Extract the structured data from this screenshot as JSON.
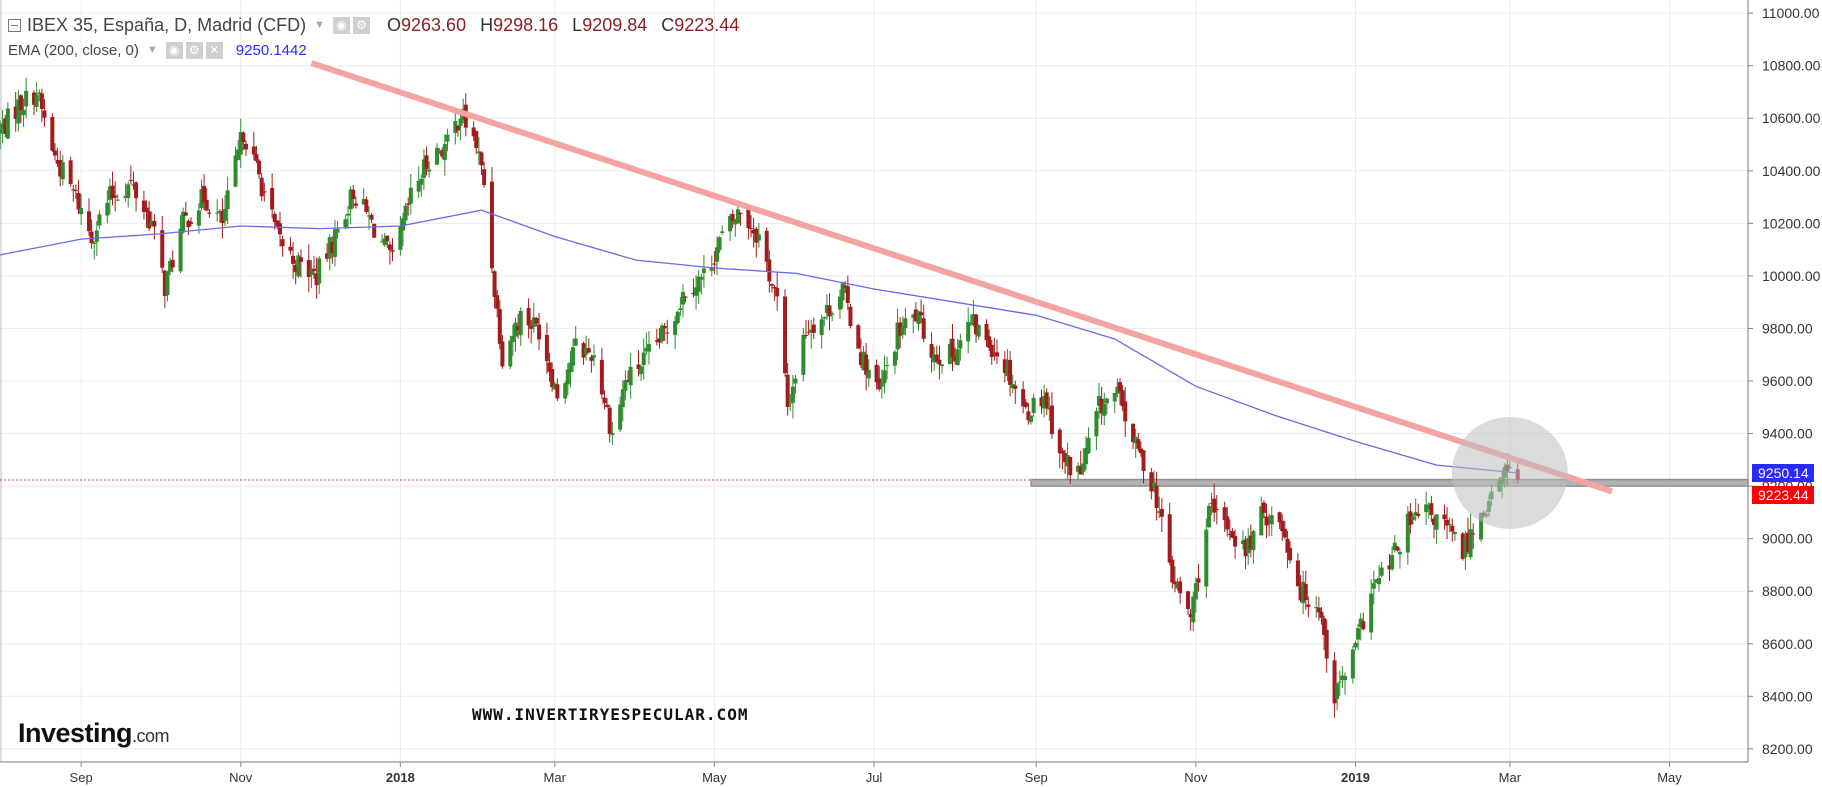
{
  "legend": {
    "title": "IBEX 35, España, D, Madrid (CFD)",
    "ohlc": [
      {
        "label": "O",
        "value": "9263.60"
      },
      {
        "label": "H",
        "value": "9298.16"
      },
      {
        "label": "L",
        "value": "9209.84"
      },
      {
        "label": "C",
        "value": "9223.44"
      }
    ],
    "ema_label": "EMA (200, close, 0)",
    "ema_value": "9250.1442"
  },
  "price_tags": {
    "ema": "9250.14",
    "close": "9223.44"
  },
  "watermark": "WWW.INVERTIRYESPECULAR.COM",
  "logo": {
    "main": "Investing",
    "suffix": ".com"
  },
  "colors": {
    "up": "#2e8b2e",
    "down": "#a11d1d",
    "ema": "#6a6ae8",
    "trendline": "#f4a3a3",
    "support": "#888888",
    "close_line": "#e23b3b",
    "ema_tag": "#2a2aff",
    "close_tag": "#ff0000",
    "axis_text": "#333333"
  },
  "chart_data": {
    "type": "candlestick",
    "title": "IBEX 35, España, D, Madrid (CFD)",
    "y_range": [
      8150,
      11050
    ],
    "y_ticks": [
      "11000.00",
      "10800.00",
      "10600.00",
      "10400.00",
      "10200.00",
      "10000.00",
      "9800.00",
      "9600.00",
      "9400.00",
      "9200.00",
      "9000.00",
      "8800.00",
      "8600.00",
      "8400.00",
      "8200.00"
    ],
    "x_range": [
      "2017-08-01",
      "2019-05-31"
    ],
    "x_ticks": [
      {
        "label": "Sep",
        "date": "2017-09-01",
        "bold": false
      },
      {
        "label": "Nov",
        "date": "2017-11-01",
        "bold": false
      },
      {
        "label": "2018",
        "date": "2018-01-01",
        "bold": true
      },
      {
        "label": "Mar",
        "date": "2018-03-01",
        "bold": false
      },
      {
        "label": "May",
        "date": "2018-05-01",
        "bold": false
      },
      {
        "label": "Jul",
        "date": "2018-07-01",
        "bold": false
      },
      {
        "label": "Sep",
        "date": "2018-09-01",
        "bold": false
      },
      {
        "label": "Nov",
        "date": "2018-11-01",
        "bold": false
      },
      {
        "label": "2019",
        "date": "2019-01-01",
        "bold": true
      },
      {
        "label": "Mar",
        "date": "2019-03-01",
        "bold": false
      },
      {
        "label": "May",
        "date": "2019-05-01",
        "bold": false
      }
    ],
    "last_ohlc": {
      "open": 9263.6,
      "high": 9298.16,
      "low": 9209.84,
      "close": 9223.44
    },
    "close_anchors": [
      {
        "date": "2017-08-01",
        "close": 10550
      },
      {
        "date": "2017-08-08",
        "close": 10650
      },
      {
        "date": "2017-08-15",
        "close": 10700
      },
      {
        "date": "2017-08-22",
        "close": 10450
      },
      {
        "date": "2017-08-30",
        "close": 10300
      },
      {
        "date": "2017-09-05",
        "close": 10150
      },
      {
        "date": "2017-09-12",
        "close": 10300
      },
      {
        "date": "2017-09-20",
        "close": 10350
      },
      {
        "date": "2017-09-28",
        "close": 10200
      },
      {
        "date": "2017-10-03",
        "close": 9960
      },
      {
        "date": "2017-10-10",
        "close": 10200
      },
      {
        "date": "2017-10-18",
        "close": 10300
      },
      {
        "date": "2017-10-25",
        "close": 10200
      },
      {
        "date": "2017-11-02",
        "close": 10550
      },
      {
        "date": "2017-11-08",
        "close": 10380
      },
      {
        "date": "2017-11-15",
        "close": 10150
      },
      {
        "date": "2017-11-22",
        "close": 10050
      },
      {
        "date": "2017-11-30",
        "close": 10000
      },
      {
        "date": "2017-12-07",
        "close": 10150
      },
      {
        "date": "2017-12-14",
        "close": 10320
      },
      {
        "date": "2017-12-21",
        "close": 10200
      },
      {
        "date": "2017-12-29",
        "close": 10050
      },
      {
        "date": "2018-01-05",
        "close": 10300
      },
      {
        "date": "2018-01-12",
        "close": 10450
      },
      {
        "date": "2018-01-19",
        "close": 10500
      },
      {
        "date": "2018-01-24",
        "close": 10620
      },
      {
        "date": "2018-01-30",
        "close": 10500
      },
      {
        "date": "2018-02-02",
        "close": 10350
      },
      {
        "date": "2018-02-06",
        "close": 9950
      },
      {
        "date": "2018-02-09",
        "close": 9700
      },
      {
        "date": "2018-02-16",
        "close": 9850
      },
      {
        "date": "2018-02-23",
        "close": 9800
      },
      {
        "date": "2018-03-02",
        "close": 9550
      },
      {
        "date": "2018-03-09",
        "close": 9730
      },
      {
        "date": "2018-03-16",
        "close": 9700
      },
      {
        "date": "2018-03-23",
        "close": 9400
      },
      {
        "date": "2018-03-28",
        "close": 9600
      },
      {
        "date": "2018-04-06",
        "close": 9700
      },
      {
        "date": "2018-04-13",
        "close": 9800
      },
      {
        "date": "2018-04-20",
        "close": 9950
      },
      {
        "date": "2018-04-27",
        "close": 10000
      },
      {
        "date": "2018-05-04",
        "close": 10150
      },
      {
        "date": "2018-05-11",
        "close": 10250
      },
      {
        "date": "2018-05-18",
        "close": 10150
      },
      {
        "date": "2018-05-25",
        "close": 9900
      },
      {
        "date": "2018-05-29",
        "close": 9500
      },
      {
        "date": "2018-06-05",
        "close": 9800
      },
      {
        "date": "2018-06-12",
        "close": 9850
      },
      {
        "date": "2018-06-19",
        "close": 9950
      },
      {
        "date": "2018-06-26",
        "close": 9700
      },
      {
        "date": "2018-07-03",
        "close": 9550
      },
      {
        "date": "2018-07-10",
        "close": 9780
      },
      {
        "date": "2018-07-17",
        "close": 9850
      },
      {
        "date": "2018-07-24",
        "close": 9700
      },
      {
        "date": "2018-07-31",
        "close": 9700
      },
      {
        "date": "2018-08-07",
        "close": 9820
      },
      {
        "date": "2018-08-14",
        "close": 9750
      },
      {
        "date": "2018-08-21",
        "close": 9650
      },
      {
        "date": "2018-08-28",
        "close": 9480
      },
      {
        "date": "2018-09-04",
        "close": 9550
      },
      {
        "date": "2018-09-11",
        "close": 9300
      },
      {
        "date": "2018-09-18",
        "close": 9250
      },
      {
        "date": "2018-09-25",
        "close": 9500
      },
      {
        "date": "2018-10-02",
        "close": 9550
      },
      {
        "date": "2018-10-09",
        "close": 9350
      },
      {
        "date": "2018-10-16",
        "close": 9200
      },
      {
        "date": "2018-10-23",
        "close": 8850
      },
      {
        "date": "2018-10-30",
        "close": 8700
      },
      {
        "date": "2018-11-06",
        "close": 9100
      },
      {
        "date": "2018-11-13",
        "close": 9050
      },
      {
        "date": "2018-11-20",
        "close": 8950
      },
      {
        "date": "2018-11-27",
        "close": 9100
      },
      {
        "date": "2018-12-04",
        "close": 9050
      },
      {
        "date": "2018-12-11",
        "close": 8800
      },
      {
        "date": "2018-12-18",
        "close": 8750
      },
      {
        "date": "2018-12-24",
        "close": 8400
      },
      {
        "date": "2018-12-31",
        "close": 8550
      },
      {
        "date": "2019-01-07",
        "close": 8800
      },
      {
        "date": "2019-01-14",
        "close": 8900
      },
      {
        "date": "2019-01-21",
        "close": 9050
      },
      {
        "date": "2019-01-28",
        "close": 9100
      },
      {
        "date": "2019-02-04",
        "close": 9050
      },
      {
        "date": "2019-02-11",
        "close": 8950
      },
      {
        "date": "2019-02-18",
        "close": 9100
      },
      {
        "date": "2019-02-25",
        "close": 9200
      },
      {
        "date": "2019-03-01",
        "close": 9300
      },
      {
        "date": "2019-03-04",
        "close": 9223
      }
    ],
    "ema200_anchors": [
      {
        "date": "2017-08-01",
        "value": 10080
      },
      {
        "date": "2017-09-01",
        "value": 10140
      },
      {
        "date": "2017-10-01",
        "value": 10160
      },
      {
        "date": "2017-11-01",
        "value": 10190
      },
      {
        "date": "2017-12-01",
        "value": 10180
      },
      {
        "date": "2018-01-01",
        "value": 10190
      },
      {
        "date": "2018-02-01",
        "value": 10250
      },
      {
        "date": "2018-03-01",
        "value": 10150
      },
      {
        "date": "2018-04-01",
        "value": 10060
      },
      {
        "date": "2018-05-01",
        "value": 10030
      },
      {
        "date": "2018-06-01",
        "value": 10010
      },
      {
        "date": "2018-07-01",
        "value": 9950
      },
      {
        "date": "2018-08-01",
        "value": 9900
      },
      {
        "date": "2018-09-01",
        "value": 9850
      },
      {
        "date": "2018-10-01",
        "value": 9760
      },
      {
        "date": "2018-11-01",
        "value": 9580
      },
      {
        "date": "2018-12-01",
        "value": 9470
      },
      {
        "date": "2019-01-01",
        "value": 9370
      },
      {
        "date": "2019-02-01",
        "value": 9280
      },
      {
        "date": "2019-03-04",
        "value": 9250
      }
    ],
    "trendline": {
      "start": {
        "date": "2017-11-28",
        "value": 10810
      },
      "end": {
        "date": "2019-04-09",
        "value": 9180
      }
    },
    "support_zone": {
      "from": "2018-08-30",
      "to": "2019-05-31",
      "low": 9200,
      "high": 9225
    },
    "highlight": {
      "date": "2019-03-01",
      "value": 9250
    },
    "close_line": 9223.44,
    "grid": true,
    "legend_position": "top-left"
  }
}
